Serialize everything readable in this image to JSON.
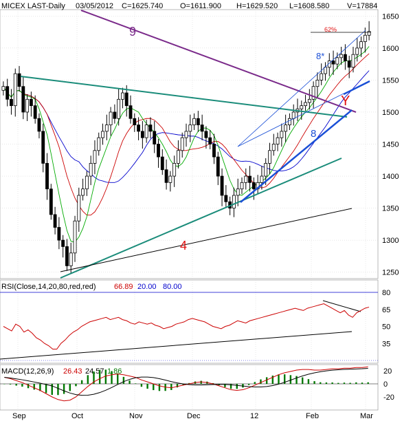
{
  "header": {
    "symbol": "MICEX LAST-Daily",
    "date": "03/05/2012",
    "close": "C=1625.740",
    "open": "O=1611.900",
    "high": "H=1629.520",
    "low": "L=1608.580",
    "volume": "V=17884"
  },
  "rsi_header": {
    "label": "RSI(Close,14,20,80,red,red)",
    "value": "66.89",
    "low": "20.00",
    "high": "80.00"
  },
  "macd_header": {
    "label": "MACD(12,26,9)",
    "value": "26.43",
    "signal": "24.57",
    "hist": "1.86"
  },
  "annotations": {
    "line9": "9",
    "line4": "4",
    "line8": "8",
    "line8star": "8*",
    "markY": "Y",
    "pct": "62%"
  },
  "colors": {
    "candle": "#000000",
    "ma_fast": "#00aa00",
    "ma_mid": "#cc0000",
    "ma_slow": "#0000cc",
    "trend_teal": "#1a8c7a",
    "trend_purple": "#7a2a8a",
    "trend_blue": "#1a4fd6",
    "label_red": "#e01010"
  },
  "chart_data": [
    {
      "type": "candlestick",
      "title": "MICEX LAST-Daily",
      "y_ticks": [
        1650,
        1600,
        1550,
        1500,
        1450,
        1400,
        1350,
        1300,
        1250
      ],
      "ylim": [
        1240,
        1660
      ],
      "x_labels": [
        "Sep",
        "Oct",
        "Nov",
        "Dec",
        "12",
        "Feb",
        "Mar"
      ],
      "close_series": [
        1540,
        1520,
        1510,
        1560,
        1540,
        1500,
        1520,
        1510,
        1490,
        1470,
        1420,
        1380,
        1340,
        1320,
        1300,
        1290,
        1260,
        1280,
        1330,
        1370,
        1380,
        1400,
        1420,
        1440,
        1460,
        1470,
        1480,
        1500,
        1490,
        1520,
        1530,
        1510,
        1490,
        1480,
        1470,
        1460,
        1480,
        1470,
        1450,
        1430,
        1410,
        1390,
        1400,
        1420,
        1440,
        1460,
        1470,
        1480,
        1490,
        1480,
        1470,
        1460,
        1450,
        1430,
        1400,
        1370,
        1360,
        1350,
        1370,
        1380,
        1390,
        1400,
        1390,
        1380,
        1390,
        1400,
        1420,
        1440,
        1450,
        1460,
        1470,
        1480,
        1490,
        1500,
        1505,
        1510,
        1515,
        1520,
        1540,
        1550,
        1560,
        1570,
        1580,
        1575,
        1585,
        1590,
        1580,
        1570,
        1590,
        1600,
        1610,
        1620,
        1626
      ]
    },
    {
      "type": "line",
      "title": "RSI(Close,14,20,80,red,red)",
      "y_ticks": [
        80,
        65,
        50,
        35
      ],
      "ylim": [
        20,
        85
      ],
      "values": [
        50,
        48,
        46,
        52,
        50,
        45,
        47,
        44,
        40,
        38,
        35,
        33,
        30,
        30,
        35,
        38,
        42,
        45,
        47,
        50,
        52,
        54,
        55,
        56,
        57,
        58,
        56,
        57,
        58,
        56,
        55,
        53,
        52,
        54,
        53,
        52,
        53,
        51,
        50,
        48,
        49,
        50,
        52,
        53,
        54,
        56,
        57,
        56,
        55,
        54,
        52,
        50,
        49,
        48,
        50,
        51,
        53,
        55,
        54,
        53,
        55,
        56,
        57,
        58,
        59,
        60,
        61,
        62,
        63,
        64,
        65,
        66,
        65,
        64,
        66,
        67,
        68,
        69,
        70,
        68,
        66,
        64,
        62,
        64,
        60,
        58,
        62,
        64,
        66,
        67
      ]
    },
    {
      "type": "line",
      "title": "MACD(12,26,9)",
      "y_ticks": [
        20,
        0,
        -20
      ],
      "ylim": [
        -35,
        30
      ],
      "values": [
        10,
        8,
        5,
        2,
        -2,
        -6,
        -10,
        -15,
        -20,
        -24,
        -26,
        -25,
        -20,
        -12,
        -4,
        3,
        8,
        12,
        14,
        15,
        14,
        12,
        10,
        6,
        3,
        0,
        -3,
        -5,
        -6,
        -4,
        -2,
        0,
        2,
        3,
        2,
        0,
        -3,
        -6,
        -9,
        -10,
        -9,
        -6,
        -2,
        2,
        6,
        10,
        14,
        17,
        19,
        21,
        22,
        22,
        21,
        21,
        22,
        23,
        23,
        24,
        24,
        25,
        25,
        26
      ]
    }
  ]
}
